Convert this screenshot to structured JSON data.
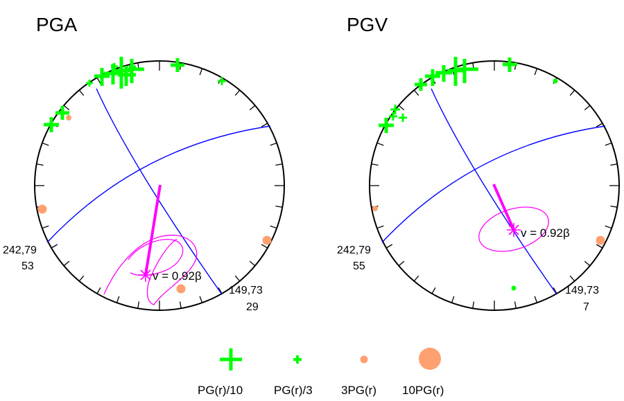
{
  "colors": {
    "green": "#00ff00",
    "orange": "#ffa070",
    "magenta": "#ff00ff",
    "blue": "#0000ff",
    "black": "#000000"
  },
  "panels": [
    {
      "title": "PGA",
      "left_plane": {
        "strike_dip": "242,79",
        "value": "53"
      },
      "right_plane": {
        "strike_dip": "149,73",
        "value": "29"
      },
      "velocity_label": "v = 0.92β"
    },
    {
      "title": "PGV",
      "left_plane": {
        "strike_dip": "242,79",
        "value": "55"
      },
      "right_plane": {
        "strike_dip": "149,73",
        "value": "7"
      },
      "velocity_label": "v = 0.92β"
    }
  ],
  "legend": [
    {
      "label": "PG(r)/10",
      "icon": "large-plus-icon"
    },
    {
      "label": "PG(r)/3",
      "icon": "small-plus-icon"
    },
    {
      "label": "3PG(r)",
      "icon": "small-dot-icon"
    },
    {
      "label": "10PG(r)",
      "icon": "large-dot-icon"
    }
  ]
}
